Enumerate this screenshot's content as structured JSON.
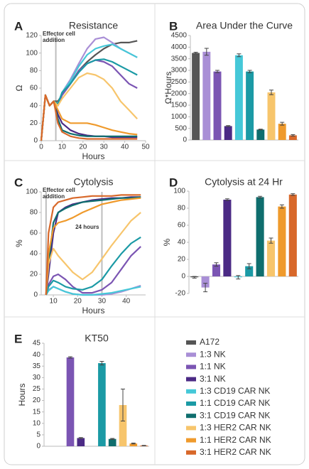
{
  "chart_data": [
    {
      "type": "line",
      "panel": "A",
      "title": "Resistance",
      "xlabel": "Hours",
      "ylabel": "Ω",
      "annotation": [
        "Effector cell",
        "addition"
      ],
      "vlines": [
        7
      ],
      "x": [
        0,
        2,
        4,
        6,
        8,
        10,
        14,
        18,
        22,
        26,
        30,
        34,
        38,
        42,
        46
      ],
      "xlim": [
        0,
        50
      ],
      "xticks": [
        0,
        10,
        20,
        30,
        40,
        50
      ],
      "ylim": [
        0,
        120
      ],
      "yticks": [
        0,
        20,
        40,
        60,
        80,
        100,
        120
      ],
      "series": [
        {
          "color": "#555555",
          "values": [
            0,
            52,
            40,
            45,
            45,
            52,
            65,
            80,
            90,
            98,
            105,
            110,
            112,
            112,
            114
          ]
        },
        {
          "color": "#a98fd6",
          "values": [
            0,
            52,
            40,
            45,
            40,
            55,
            70,
            88,
            105,
            116,
            118,
            112,
            105,
            100,
            95
          ]
        },
        {
          "color": "#7b55b3",
          "values": [
            0,
            52,
            40,
            45,
            40,
            52,
            65,
            80,
            88,
            92,
            90,
            85,
            75,
            65,
            60
          ]
        },
        {
          "color": "#4b2a85",
          "values": [
            0,
            52,
            40,
            45,
            30,
            20,
            12,
            8,
            6,
            5,
            5,
            4,
            4,
            4,
            4
          ]
        },
        {
          "color": "#45c8d8",
          "values": [
            0,
            52,
            40,
            45,
            42,
            55,
            68,
            85,
            98,
            105,
            108,
            110,
            105,
            100,
            95
          ]
        },
        {
          "color": "#1b9aa5",
          "values": [
            0,
            52,
            40,
            45,
            42,
            55,
            65,
            78,
            88,
            92,
            93,
            90,
            85,
            80,
            75
          ]
        },
        {
          "color": "#0f6e6e",
          "values": [
            0,
            52,
            40,
            45,
            25,
            12,
            8,
            6,
            5,
            5,
            5,
            5,
            5,
            5,
            5
          ]
        },
        {
          "color": "#f7c56c",
          "values": [
            0,
            52,
            40,
            45,
            40,
            48,
            60,
            72,
            77,
            75,
            70,
            60,
            45,
            35,
            25
          ]
        },
        {
          "color": "#ef9a2c",
          "values": [
            0,
            52,
            40,
            45,
            35,
            25,
            20,
            20,
            20,
            18,
            15,
            12,
            10,
            8,
            7
          ]
        },
        {
          "color": "#d8682a",
          "values": [
            0,
            52,
            40,
            45,
            20,
            10,
            5,
            3,
            2,
            2,
            2,
            2,
            2,
            2,
            2
          ]
        }
      ]
    },
    {
      "type": "bar",
      "panel": "B",
      "title": "Area Under the Curve",
      "ylabel": "Ω*Hours",
      "ylim": [
        0,
        4500
      ],
      "yticks": [
        0,
        500,
        1000,
        1500,
        2000,
        2500,
        3000,
        3500,
        4000,
        4500
      ],
      "values": [
        3750,
        3800,
        2950,
        600,
        3650,
        2950,
        450,
        2050,
        700,
        200
      ],
      "errors": [
        30,
        150,
        50,
        20,
        60,
        50,
        15,
        100,
        60,
        30
      ]
    },
    {
      "type": "line",
      "panel": "C",
      "title": "Cytolysis",
      "xlabel": "Hours",
      "ylabel": "%",
      "annotation": [
        "Effector cell",
        "addition"
      ],
      "vline_label": "24 hours",
      "vlines": [
        7,
        30
      ],
      "x": [
        7,
        8,
        10,
        12,
        15,
        18,
        22,
        26,
        30,
        34,
        38,
        42,
        46
      ],
      "xlim": [
        5,
        48
      ],
      "xticks": [
        10,
        20,
        30,
        40
      ],
      "ylim": [
        0,
        100
      ],
      "yticks": [
        0,
        20,
        40,
        60,
        80,
        100
      ],
      "series": [
        {
          "color": "#a98fd6",
          "values": [
            0,
            5,
            8,
            6,
            3,
            1,
            0,
            0,
            0,
            1,
            3,
            6,
            9
          ]
        },
        {
          "color": "#7b55b3",
          "values": [
            0,
            10,
            18,
            20,
            15,
            8,
            2,
            2,
            5,
            12,
            25,
            38,
            47
          ]
        },
        {
          "color": "#4b2a85",
          "values": [
            0,
            20,
            60,
            80,
            85,
            88,
            90,
            92,
            93,
            94,
            94,
            95,
            95
          ]
        },
        {
          "color": "#45c8d8",
          "values": [
            0,
            4,
            8,
            6,
            3,
            1,
            0,
            0,
            1,
            2,
            4,
            6,
            8
          ]
        },
        {
          "color": "#1b9aa5",
          "values": [
            0,
            8,
            14,
            12,
            8,
            6,
            5,
            8,
            15,
            28,
            40,
            50,
            56
          ]
        },
        {
          "color": "#0f6e6e",
          "values": [
            0,
            30,
            70,
            80,
            84,
            87,
            90,
            91,
            92,
            93,
            94,
            94,
            95
          ]
        },
        {
          "color": "#f7c56c",
          "values": [
            0,
            30,
            45,
            38,
            30,
            22,
            15,
            22,
            35,
            48,
            60,
            72,
            80
          ]
        },
        {
          "color": "#ef9a2c",
          "values": [
            0,
            40,
            65,
            70,
            72,
            75,
            80,
            84,
            88,
            90,
            92,
            93,
            94
          ]
        },
        {
          "color": "#d8682a",
          "values": [
            0,
            60,
            85,
            90,
            92,
            94,
            95,
            96,
            96,
            96,
            97,
            97,
            97
          ]
        }
      ]
    },
    {
      "type": "bar",
      "panel": "D",
      "title": "Cytolysis at 24 Hr",
      "ylabel": "%",
      "ylim": [
        -20,
        100
      ],
      "yticks": [
        -20,
        0,
        20,
        40,
        60,
        80,
        100
      ],
      "values": [
        -1,
        -13,
        14,
        90,
        -1,
        12,
        93,
        42,
        82,
        96
      ],
      "errors": [
        1,
        5,
        2,
        1,
        2,
        3,
        1,
        3,
        2,
        1
      ]
    },
    {
      "type": "bar",
      "panel": "E",
      "title": "KT50",
      "ylabel": "Hours",
      "ylim": [
        0,
        45
      ],
      "yticks": [
        0,
        5,
        10,
        15,
        20,
        25,
        30,
        35,
        40,
        45
      ],
      "values": [
        null,
        null,
        38.8,
        3.6,
        null,
        36.3,
        3.2,
        18,
        1.2,
        0.3
      ],
      "errors": [
        null,
        null,
        0.3,
        0.2,
        null,
        0.8,
        0.2,
        7,
        0.2,
        0.1
      ]
    }
  ],
  "legend": [
    {
      "name": "A172",
      "color": "#555555"
    },
    {
      "name": "1:3 NK",
      "color": "#a98fd6"
    },
    {
      "name": "1:1 NK",
      "color": "#7b55b3"
    },
    {
      "name": "3:1 NK",
      "color": "#4b2a85"
    },
    {
      "name": "1:3 CD19 CAR NK",
      "color": "#45c8d8"
    },
    {
      "name": "1:1 CD19 CAR NK",
      "color": "#1b9aa5"
    },
    {
      "name": "3:1 CD19 CAR NK",
      "color": "#0f6e6e"
    },
    {
      "name": "1:3 HER2 CAR NK",
      "color": "#f7c56c"
    },
    {
      "name": "1:1 HER2 CAR NK",
      "color": "#ef9a2c"
    },
    {
      "name": "3:1 HER2 CAR NK",
      "color": "#d8682a"
    }
  ]
}
